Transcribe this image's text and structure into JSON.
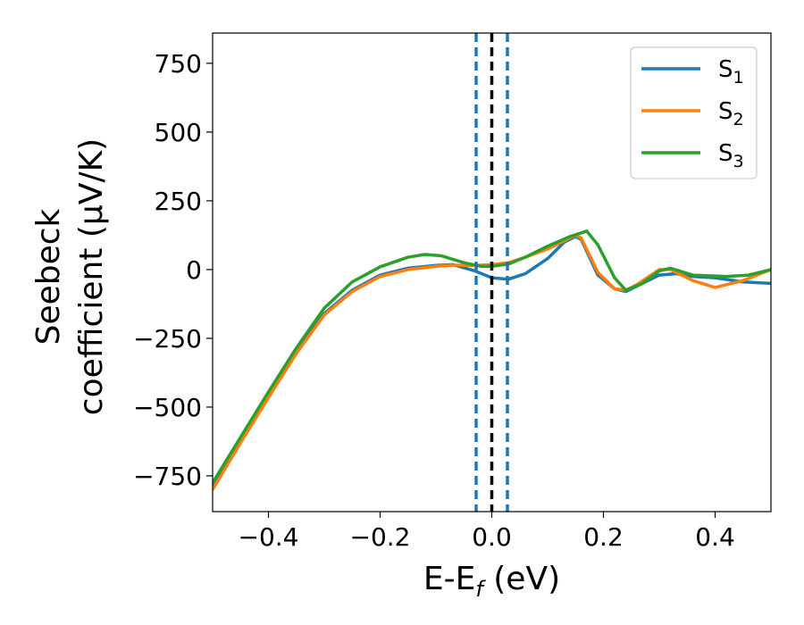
{
  "chart_data": {
    "type": "line",
    "xlabel": "E-E",
    "xlabel_sub": "f",
    "xlabel_unit": " (eV)",
    "ylabel_line1": "Seebeck",
    "ylabel_line2": "coefficient  (μV/K)",
    "xlim": [
      -0.5,
      0.5
    ],
    "ylim": [
      -880,
      860
    ],
    "xticks": [
      -0.4,
      -0.2,
      0.0,
      0.2,
      0.4
    ],
    "xtick_labels": [
      "−0.4",
      "−0.2",
      "0.0",
      "0.2",
      "0.4"
    ],
    "yticks": [
      750,
      500,
      250,
      0,
      -250,
      -500,
      -750
    ],
    "ytick_labels": [
      "750",
      "500",
      "250",
      "0",
      "−250",
      "−500",
      "−750"
    ],
    "grid": false,
    "legend_position": "top-right",
    "vlines": [
      {
        "x": -0.028,
        "style": "dashed",
        "color": "#1f77b4"
      },
      {
        "x": 0.0,
        "style": "dashed",
        "color": "#000000"
      },
      {
        "x": 0.028,
        "style": "dashed",
        "color": "#1f77b4"
      }
    ],
    "series": [
      {
        "name": "S",
        "sub": "1",
        "color": "#1f77b4",
        "x": [
          -0.5,
          -0.45,
          -0.4,
          -0.35,
          -0.3,
          -0.25,
          -0.2,
          -0.15,
          -0.1,
          -0.07,
          -0.03,
          0.0,
          0.03,
          0.06,
          0.1,
          0.13,
          0.15,
          0.16,
          0.19,
          0.22,
          0.24,
          0.26,
          0.3,
          0.33,
          0.36,
          0.4,
          0.45,
          0.5
        ],
        "y": [
          -790,
          -620,
          -460,
          -300,
          -160,
          -75,
          -20,
          5,
          15,
          18,
          -5,
          -30,
          -35,
          -15,
          40,
          100,
          120,
          110,
          -20,
          -70,
          -80,
          -60,
          -20,
          -15,
          -25,
          -30,
          -45,
          -50
        ]
      },
      {
        "name": "S",
        "sub": "2",
        "color": "#ff7f0e",
        "x": [
          -0.5,
          -0.45,
          -0.4,
          -0.35,
          -0.3,
          -0.25,
          -0.2,
          -0.15,
          -0.1,
          -0.07,
          -0.03,
          0.0,
          0.03,
          0.06,
          0.1,
          0.13,
          0.15,
          0.16,
          0.19,
          0.22,
          0.24,
          0.26,
          0.3,
          0.32,
          0.36,
          0.4,
          0.45,
          0.5
        ],
        "y": [
          -800,
          -630,
          -465,
          -305,
          -165,
          -80,
          -25,
          0,
          12,
          16,
          15,
          18,
          25,
          45,
          75,
          105,
          125,
          115,
          -10,
          -70,
          -75,
          -55,
          0,
          0,
          -40,
          -65,
          -40,
          0
        ]
      },
      {
        "name": "S",
        "sub": "3",
        "color": "#2ca02c",
        "x": [
          -0.5,
          -0.45,
          -0.4,
          -0.35,
          -0.3,
          -0.25,
          -0.2,
          -0.15,
          -0.12,
          -0.09,
          -0.05,
          -0.02,
          0.0,
          0.03,
          0.06,
          0.1,
          0.14,
          0.17,
          0.19,
          0.22,
          0.24,
          0.27,
          0.3,
          0.32,
          0.36,
          0.42,
          0.46,
          0.5
        ],
        "y": [
          -775,
          -610,
          -445,
          -285,
          -140,
          -45,
          10,
          45,
          55,
          50,
          25,
          12,
          12,
          20,
          45,
          85,
          120,
          140,
          90,
          -30,
          -75,
          -50,
          -5,
          5,
          -20,
          -25,
          -20,
          0
        ]
      }
    ]
  }
}
